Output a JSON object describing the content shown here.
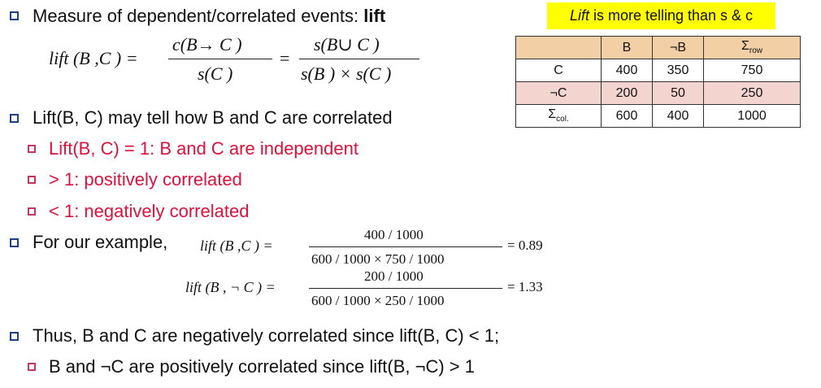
{
  "bullets": {
    "measure_prefix": "Measure of dependent/correlated events: ",
    "measure_bold": "lift",
    "lift_tell": "Lift(B, C) may tell how B and C are correlated",
    "independent": "Lift(B, C) = 1: B and C are independent",
    "positive": "> 1:  positively correlated",
    "negative": "< 1: negatively correlated",
    "example": "For our example,",
    "thus": "Thus, B and C are negatively correlated since lift(B, C) < 1;",
    "b_not_c": "B and ¬C are positively correlated since lift(B, ¬C) > 1"
  },
  "formula": {
    "lhs": "lift (B ,C ) =",
    "num1": "c(B→ C )",
    "den1": "s(C )",
    "eq": "=",
    "num2": "s(B∪ C )",
    "den2": "s(B ) × s(C )"
  },
  "examples": [
    {
      "lhs": "lift (B ,C ) =",
      "num": "400  / 1000",
      "den": "600  / 1000   ×  750  / 1000",
      "result": "= 0.89"
    },
    {
      "lhs": "lift (B , ¬ C ) =",
      "num": "200  / 1000",
      "den": "600  / 1000   ×  250  / 1000",
      "result": "= 1.33"
    }
  ],
  "callout": {
    "italic": "Lift",
    "rest": " is more telling than s & c"
  },
  "table": {
    "header": [
      "",
      "B",
      "¬B",
      "Σ",
      "row"
    ],
    "rows": [
      {
        "label": "C",
        "cells": [
          "400",
          "350",
          "750"
        ]
      },
      {
        "label": "¬C",
        "cells": [
          "200",
          "50",
          "250"
        ]
      },
      {
        "label_main": "Σ",
        "label_sub": "col.",
        "cells": [
          "600",
          "400",
          "1000"
        ]
      }
    ]
  },
  "colors": {
    "accent_blue": "#1f3f8a",
    "highlight_red": "#e0103a",
    "callout_yellow": "#ffff00",
    "header_peach": "#f3cfa6",
    "row_pink": "#f4d4cf"
  }
}
